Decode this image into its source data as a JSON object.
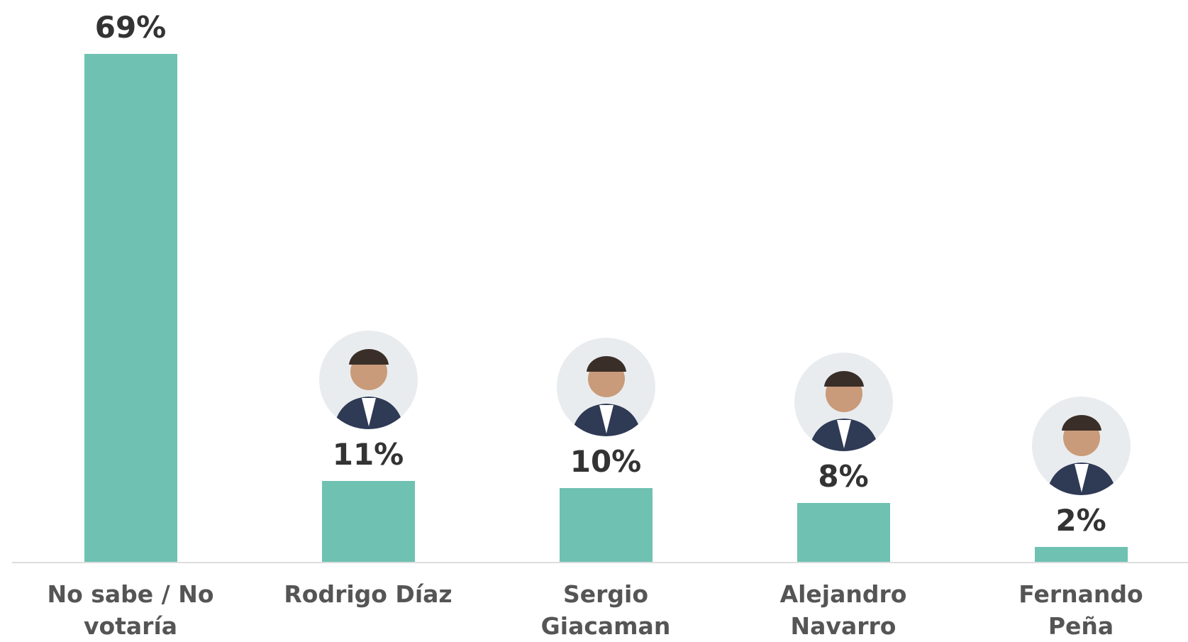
{
  "chart_data": {
    "type": "bar",
    "categories": [
      "No sabe / No votaría",
      "Rodrigo Díaz",
      "Sergio Giacaman",
      "Alejandro Navarro",
      "Fernando Peña"
    ],
    "values": [
      69,
      11,
      10,
      8,
      2
    ],
    "value_labels": [
      "69%",
      "11%",
      "10%",
      "8%",
      "2%"
    ],
    "color": "#6fc1b2"
  }
}
